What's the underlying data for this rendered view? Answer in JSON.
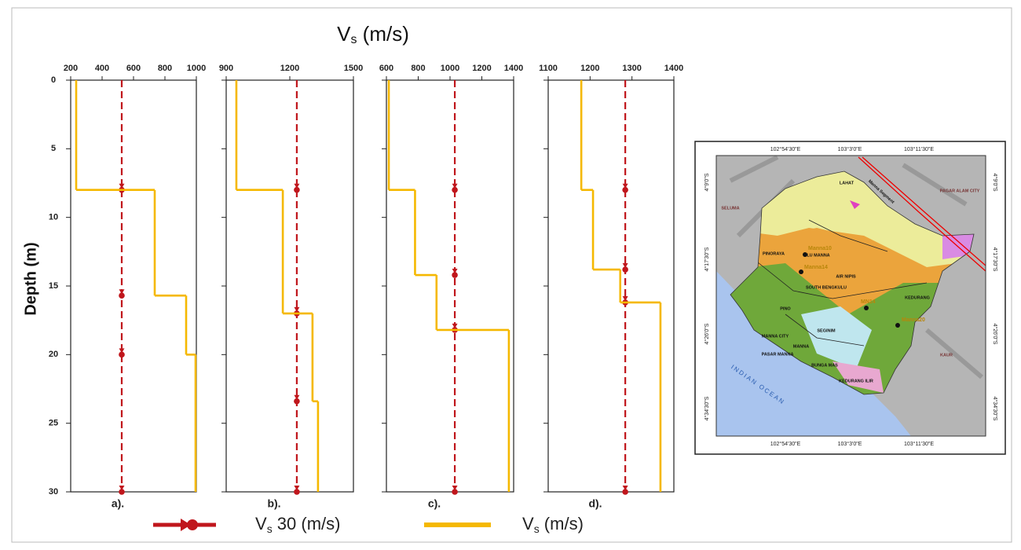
{
  "figure": {
    "title": {
      "symbol": "V",
      "sub": "s",
      "rest": " (m/s)"
    },
    "ylabel": "Depth (m)",
    "legend": [
      {
        "symbol": "V",
        "sub": "s",
        "rest": " 30 (m/s)"
      },
      {
        "symbol": "V",
        "sub": "s",
        "rest": " (m/s)"
      }
    ]
  },
  "chart_data": [
    {
      "type": "step",
      "label": "a).",
      "xlim": [
        200,
        1000
      ],
      "xticks": [
        200,
        400,
        600,
        800,
        1000
      ],
      "ylim": [
        0,
        30
      ],
      "yticks": [
        0,
        5,
        10,
        15,
        20,
        25,
        30
      ],
      "y_inverted": true,
      "show_ytick_labels": true,
      "depth": [
        0,
        8,
        15.7,
        20
      ],
      "values": [
        235,
        735,
        935,
        995
      ],
      "color": "#f5b800",
      "vs30": 525,
      "vs30_color": "#c0161c"
    },
    {
      "type": "step",
      "label": "b).",
      "xlim": [
        900,
        1500
      ],
      "xticks": [
        900,
        1200,
        1500
      ],
      "ylim": [
        0,
        30
      ],
      "yticks": [
        0,
        5,
        10,
        15,
        20,
        25,
        30
      ],
      "y_inverted": true,
      "show_ytick_labels": false,
      "depth": [
        0,
        8,
        17,
        23.4
      ],
      "values": [
        948,
        1167,
        1307,
        1333
      ],
      "color": "#f5b800",
      "vs30": 1233,
      "vs30_color": "#c0161c"
    },
    {
      "type": "step",
      "label": "c).",
      "xlim": [
        600,
        1400
      ],
      "xticks": [
        600,
        800,
        1000,
        1200,
        1400
      ],
      "ylim": [
        0,
        30
      ],
      "yticks": [
        0,
        5,
        10,
        15,
        20,
        25,
        30
      ],
      "y_inverted": true,
      "show_ytick_labels": false,
      "depth": [
        0,
        8,
        14.2,
        18.2
      ],
      "values": [
        615,
        780,
        915,
        1370
      ],
      "color": "#f5b800",
      "vs30": 1030,
      "vs30_color": "#c0161c"
    },
    {
      "type": "step",
      "label": "d).",
      "xlim": [
        1100,
        1400
      ],
      "xticks": [
        1100,
        1200,
        1300,
        1400
      ],
      "ylim": [
        0,
        30
      ],
      "yticks": [
        0,
        5,
        10,
        15,
        20,
        25,
        30
      ],
      "y_inverted": true,
      "show_ytick_labels": false,
      "depth": [
        0,
        8,
        13.8,
        16.2
      ],
      "values": [
        1179,
        1207,
        1272,
        1368
      ],
      "color": "#f5b800",
      "vs30": 1284,
      "vs30_color": "#c0161c"
    }
  ],
  "map": {
    "lon_labels": [
      "102°54'30\"E",
      "103°3'0\"E",
      "103°11'30\"E"
    ],
    "lat_labels": [
      "4°9'0\"S",
      "4°17'30\"S",
      "4°26'0\"S",
      "4°34'30\"S"
    ],
    "places": [
      "LAHAT",
      "PAGAR ALAM CITY",
      "SELUMA",
      "INDIAN OCEAN",
      "KAUR",
      "SOUTH BENGKULU",
      "PINORAYA",
      "ULU MANNA",
      "AIR NIPIS",
      "KEDURANG",
      "PINO",
      "SEGINIM",
      "MANNA CITY",
      "MANNA",
      "PASAR MANNA",
      "BUNGA MAS",
      "KEDURANG ILIR",
      "Manna Segment"
    ],
    "sites": [
      "Manna10",
      "Manna14",
      "MN14",
      "Manna20"
    ]
  }
}
